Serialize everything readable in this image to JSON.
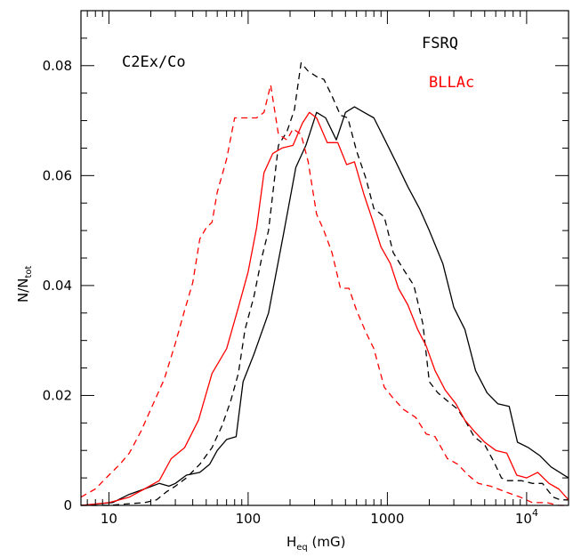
{
  "chart_data": {
    "type": "line",
    "annotation": "C2Ex/Co",
    "xlabel": {
      "main": "H",
      "sub": "eq",
      "rest": " (mG)"
    },
    "ylabel": {
      "main": "N/N",
      "sub": "tot"
    },
    "xscale": "log",
    "xlim": [
      6.3,
      20000
    ],
    "ylim": [
      0,
      0.09
    ],
    "x_tick_labels": [
      {
        "value": 10,
        "label": "10"
      },
      {
        "value": 100,
        "label": "100"
      },
      {
        "value": 1000,
        "label": "1000"
      },
      {
        "value": 10000,
        "label": "10",
        "sup": "4"
      }
    ],
    "y_tick_labels": [
      {
        "value": 0,
        "label": "0"
      },
      {
        "value": 0.02,
        "label": "0.02"
      },
      {
        "value": 0.04,
        "label": "0.04"
      },
      {
        "value": 0.06,
        "label": "0.06"
      },
      {
        "value": 0.08,
        "label": "0.08"
      }
    ],
    "legend": [
      {
        "name": "FSRQ",
        "color": "#000000"
      },
      {
        "name": "BLLAc",
        "color": "#ff0000"
      }
    ],
    "series": [
      {
        "legend_ref": "FSRQ",
        "color": "#000000",
        "dash": "solid",
        "x": [
          6.3,
          10.6,
          14,
          18,
          23,
          27,
          30,
          36,
          45,
          53,
          60,
          70,
          82,
          92,
          110,
          140,
          180,
          220,
          260,
          310,
          360,
          430,
          500,
          580,
          680,
          800,
          960,
          1150,
          1400,
          1700,
          2000,
          2500,
          3000,
          3600,
          4300,
          5200,
          6200,
          7500,
          8600,
          10300,
          12500,
          15000,
          20000
        ],
        "y": [
          0,
          0.0005,
          0.002,
          0.003,
          0.004,
          0.0035,
          0.004,
          0.0055,
          0.006,
          0.0075,
          0.01,
          0.012,
          0.0125,
          0.0225,
          0.0275,
          0.035,
          0.0495,
          0.0615,
          0.0655,
          0.0715,
          0.0705,
          0.0665,
          0.0715,
          0.0725,
          0.0715,
          0.0705,
          0.0665,
          0.0625,
          0.058,
          0.054,
          0.05,
          0.044,
          0.036,
          0.032,
          0.0245,
          0.0205,
          0.0185,
          0.018,
          0.0115,
          0.0105,
          0.009,
          0.007,
          0.005
        ]
      },
      {
        "legend_ref": "FSRQ",
        "color": "#000000",
        "dash": "dashed",
        "x": [
          6.3,
          10,
          14,
          18,
          22,
          26,
          30,
          36,
          45,
          55,
          65,
          75,
          85,
          95,
          110,
          125,
          140,
          165,
          190,
          215,
          240,
          270,
          310,
          350,
          400,
          460,
          520,
          600,
          700,
          800,
          950,
          1100,
          1300,
          1550,
          1800,
          2000,
          2300,
          2700,
          3200,
          3700,
          4200,
          5000,
          5800,
          6600,
          7200,
          8000,
          9200,
          11000,
          13000,
          15500,
          17500,
          20000
        ],
        "y": [
          0,
          0,
          0.0003,
          0.0005,
          0.001,
          0.0025,
          0.0035,
          0.005,
          0.0075,
          0.0105,
          0.0145,
          0.019,
          0.024,
          0.032,
          0.038,
          0.045,
          0.05,
          0.0655,
          0.068,
          0.072,
          0.0805,
          0.079,
          0.078,
          0.0775,
          0.0745,
          0.071,
          0.0705,
          0.0645,
          0.0595,
          0.054,
          0.0525,
          0.046,
          0.043,
          0.04,
          0.033,
          0.0225,
          0.0205,
          0.019,
          0.0175,
          0.015,
          0.0125,
          0.011,
          0.008,
          0.005,
          0.0045,
          0.0045,
          0.0045,
          0.004,
          0.004,
          0.0015,
          0.001,
          0.001
        ]
      },
      {
        "legend_ref": "BLLAc",
        "color": "#ff0000",
        "dash": "solid",
        "x": [
          6.3,
          10,
          14,
          18,
          23,
          28,
          35,
          44,
          55,
          70,
          85,
          100,
          115,
          130,
          150,
          175,
          210,
          245,
          275,
          310,
          370,
          440,
          510,
          580,
          680,
          780,
          900,
          1050,
          1200,
          1400,
          1650,
          1900,
          2200,
          2600,
          3100,
          3600,
          4200,
          5000,
          6000,
          7200,
          8500,
          10000,
          12000,
          14500,
          17000,
          20000
        ],
        "y": [
          0,
          0.0005,
          0.0015,
          0.003,
          0.0045,
          0.0085,
          0.0105,
          0.0155,
          0.024,
          0.0285,
          0.036,
          0.0425,
          0.0505,
          0.0605,
          0.064,
          0.065,
          0.0655,
          0.0695,
          0.0715,
          0.0705,
          0.066,
          0.066,
          0.062,
          0.0625,
          0.0565,
          0.052,
          0.047,
          0.044,
          0.0395,
          0.0365,
          0.032,
          0.029,
          0.0245,
          0.021,
          0.0185,
          0.0155,
          0.0135,
          0.0115,
          0.01,
          0.0095,
          0.0055,
          0.005,
          0.006,
          0.004,
          0.003,
          0.001
        ]
      },
      {
        "legend_ref": "BLLAc",
        "color": "#ff0000",
        "dash": "dashed",
        "x": [
          6.3,
          8,
          10,
          12,
          14,
          17,
          20,
          25,
          30,
          35,
          40,
          45,
          50,
          55,
          60,
          70,
          80,
          90,
          100,
          115,
          130,
          145,
          165,
          190,
          210,
          240,
          270,
          310,
          350,
          400,
          460,
          530,
          600,
          700,
          800,
          950,
          1100,
          1300,
          1600,
          1900,
          2200,
          2700,
          3200,
          3800,
          4500,
          5500,
          7000,
          9000,
          11000,
          14000,
          17000,
          20000
        ],
        "y": [
          0.0015,
          0.003,
          0.0055,
          0.0075,
          0.0095,
          0.0135,
          0.0175,
          0.023,
          0.0295,
          0.0355,
          0.0405,
          0.0485,
          0.0505,
          0.0515,
          0.057,
          0.063,
          0.0705,
          0.0705,
          0.0705,
          0.0705,
          0.0715,
          0.0765,
          0.0675,
          0.0665,
          0.0685,
          0.0675,
          0.0625,
          0.053,
          0.05,
          0.046,
          0.0395,
          0.0395,
          0.0355,
          0.0315,
          0.0285,
          0.0215,
          0.0195,
          0.0175,
          0.016,
          0.013,
          0.0125,
          0.0085,
          0.0075,
          0.0055,
          0.004,
          0.0035,
          0.0025,
          0.0015,
          0.0005,
          0.0005,
          0,
          0
        ]
      }
    ]
  }
}
